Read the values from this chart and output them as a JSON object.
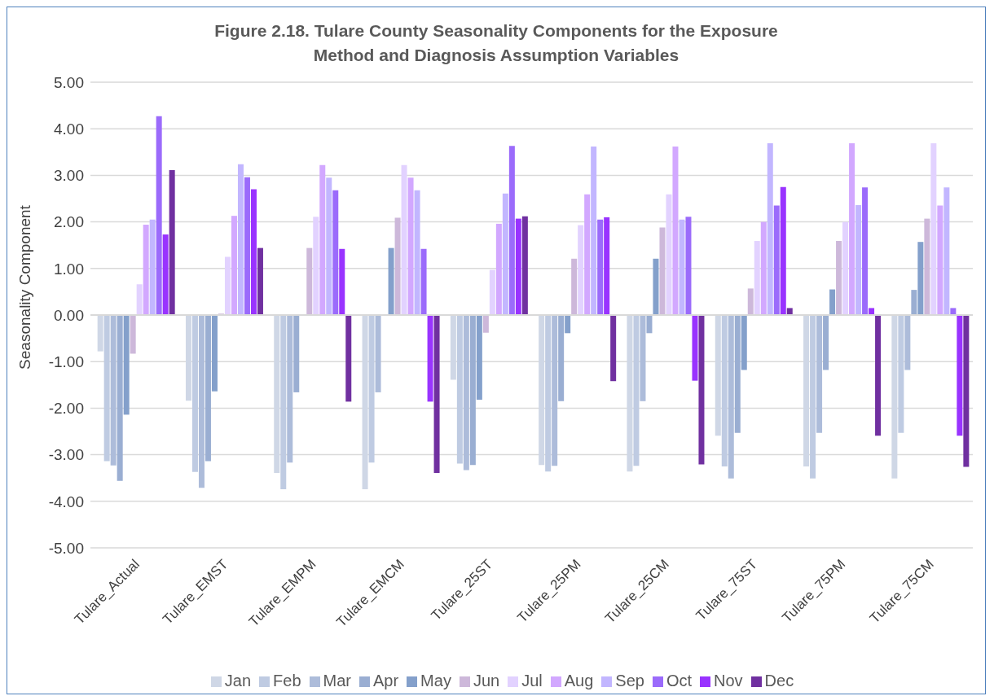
{
  "chart_data": {
    "type": "bar",
    "title": "Figure 2.18. Tulare County Seasonality Components for the Exposure Method and Diagnosis Assumption Variables",
    "ylabel": "Seasonality Component",
    "categories": [
      "Tulare_Actual",
      "Tulare_EMST",
      "Tulare_EMPM",
      "Tulare_EMCM",
      "Tulare_25ST",
      "Tulare_25PM",
      "Tulare_25CM",
      "Tulare_75ST",
      "Tulare_75PM",
      "Tulare_75CM"
    ],
    "series": [
      {
        "name": "Jan",
        "color": "#cfd7e6",
        "values": [
          -0.78,
          -1.84,
          -3.39,
          -3.74,
          -1.39,
          -3.22,
          -3.36,
          -2.59,
          -3.25,
          -3.51
        ]
      },
      {
        "name": "Feb",
        "color": "#bfcbe2",
        "values": [
          -3.14,
          -3.37,
          -3.74,
          -3.17,
          -3.19,
          -3.36,
          -3.24,
          -3.25,
          -3.51,
          -2.53
        ]
      },
      {
        "name": "Mar",
        "color": "#adbcda",
        "values": [
          -3.23,
          -3.71,
          -3.17,
          -1.66,
          -3.33,
          -3.24,
          -1.85,
          -3.51,
          -2.53,
          -1.18
        ]
      },
      {
        "name": "Apr",
        "color": "#9aaed2",
        "values": [
          -3.56,
          -3.14,
          -1.66,
          0,
          -3.22,
          -1.85,
          -0.39,
          -2.53,
          -1.18,
          0.54
        ]
      },
      {
        "name": "May",
        "color": "#84a0cb",
        "values": [
          -2.14,
          -1.64,
          0,
          1.44,
          -1.82,
          -0.39,
          1.21,
          -1.18,
          0.55,
          1.57
        ]
      },
      {
        "name": "Jun",
        "color": "#cdb8da",
        "values": [
          -0.83,
          0.03,
          1.44,
          2.09,
          -0.38,
          1.21,
          1.88,
          0.57,
          1.59,
          2.07
        ]
      },
      {
        "name": "Jul",
        "color": "#e2d2ff",
        "values": [
          0.66,
          1.25,
          2.11,
          3.22,
          0.97,
          1.93,
          2.59,
          1.59,
          2.0,
          3.69
        ]
      },
      {
        "name": "Aug",
        "color": "#d2a8ff",
        "values": [
          1.94,
          2.13,
          3.22,
          2.95,
          1.96,
          2.59,
          3.62,
          2.0,
          3.69,
          2.35
        ]
      },
      {
        "name": "Sep",
        "color": "#c2b6ff",
        "values": [
          2.05,
          3.24,
          2.95,
          2.68,
          2.61,
          3.62,
          2.05,
          3.69,
          2.36,
          2.74
        ]
      },
      {
        "name": "Oct",
        "color": "#9b6bfb",
        "values": [
          4.27,
          2.96,
          2.68,
          1.42,
          3.63,
          2.05,
          2.11,
          2.35,
          2.74,
          0.15
        ]
      },
      {
        "name": "Nov",
        "color": "#9933ff",
        "values": [
          1.73,
          2.7,
          1.42,
          -1.86,
          2.07,
          2.1,
          -1.41,
          2.75,
          0.15,
          -2.59
        ]
      },
      {
        "name": "Dec",
        "color": "#7030a0",
        "values": [
          3.11,
          1.44,
          -1.86,
          -3.39,
          2.12,
          -1.42,
          -3.21,
          0.15,
          -2.59,
          -3.26
        ]
      }
    ],
    "ylim": [
      -5,
      5
    ],
    "yticks": [
      {
        "value": -5,
        "label": "-5.00"
      },
      {
        "value": -4,
        "label": "-4.00"
      },
      {
        "value": -3,
        "label": "-3.00"
      },
      {
        "value": -2,
        "label": "-2.00"
      },
      {
        "value": -1,
        "label": "-1.00"
      },
      {
        "value": 0,
        "label": "0.00"
      },
      {
        "value": 1,
        "label": "1.00"
      },
      {
        "value": 2,
        "label": "2.00"
      },
      {
        "value": 3,
        "label": "3.00"
      },
      {
        "value": 4,
        "label": "4.00"
      },
      {
        "value": 5,
        "label": "5.00"
      }
    ],
    "grid": "y",
    "legend": "bottom"
  }
}
